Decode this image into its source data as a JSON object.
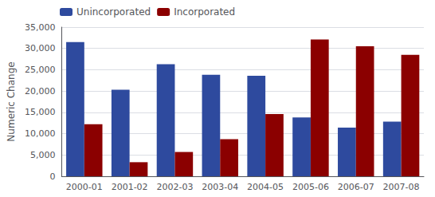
{
  "chart_data": {
    "type": "bar",
    "categories": [
      "2000-01",
      "2001-02",
      "2002-03",
      "2003-04",
      "2004-05",
      "2005-06",
      "2006-07",
      "2007-08"
    ],
    "series": [
      {
        "name": "Unincorporated",
        "color": "#2E4A9E",
        "values": [
          31500,
          20300,
          26300,
          23800,
          23600,
          13800,
          11400,
          12800
        ]
      },
      {
        "name": "Incorporated",
        "color": "#8B0000",
        "values": [
          12200,
          3300,
          5700,
          8700,
          14600,
          32100,
          30500,
          28500
        ]
      }
    ],
    "ylabel": "Numeric Change",
    "ylim": [
      0,
      35000
    ],
    "yticks": [
      0,
      {
        "value": 5000,
        "label": "5,000"
      },
      {
        "value": 10000,
        "label": "10,000"
      },
      {
        "value": 15000,
        "label": "15,000"
      },
      {
        "value": 20000,
        "label": "20,000"
      },
      {
        "value": 25000,
        "label": "25,000"
      },
      {
        "value": 30000,
        "label": "30,000"
      },
      {
        "value": 35000,
        "label": "35,000"
      }
    ],
    "grid": true,
    "legend": "upper left"
  }
}
